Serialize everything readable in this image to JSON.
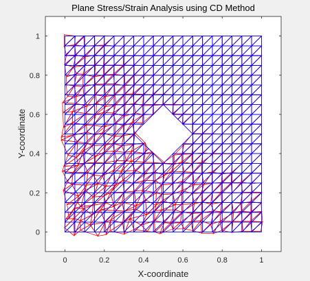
{
  "chart_data": {
    "type": "line",
    "title": "Plane Stress/Strain Analysis using CD Method",
    "xlabel": "X-coordinate",
    "ylabel": "Y-coordinate",
    "xlim": [
      -0.1,
      1.1
    ],
    "ylim": [
      -0.1,
      1.1
    ],
    "xticks": [
      0,
      0.2,
      0.4,
      0.6,
      0.8,
      1
    ],
    "yticks": [
      0,
      0.2,
      0.4,
      0.6,
      0.8,
      1
    ],
    "xtick_labels": [
      "0",
      "0.2",
      "0.4",
      "0.6",
      "0.8",
      "1"
    ],
    "ytick_labels": [
      "0",
      "0.2",
      "0.4",
      "0.6",
      "0.8",
      "1"
    ],
    "grid": false,
    "mesh": {
      "domain": [
        0,
        1,
        0,
        1
      ],
      "divisions": 20,
      "element": "triangle",
      "hole_center": [
        0.5,
        0.5
      ],
      "hole_half_diagonal": 0.15
    },
    "series": [
      {
        "role": "deformed-mesh",
        "color": "#ff0000"
      },
      {
        "role": "undeformed-mesh",
        "color": "#0000ff"
      }
    ]
  }
}
